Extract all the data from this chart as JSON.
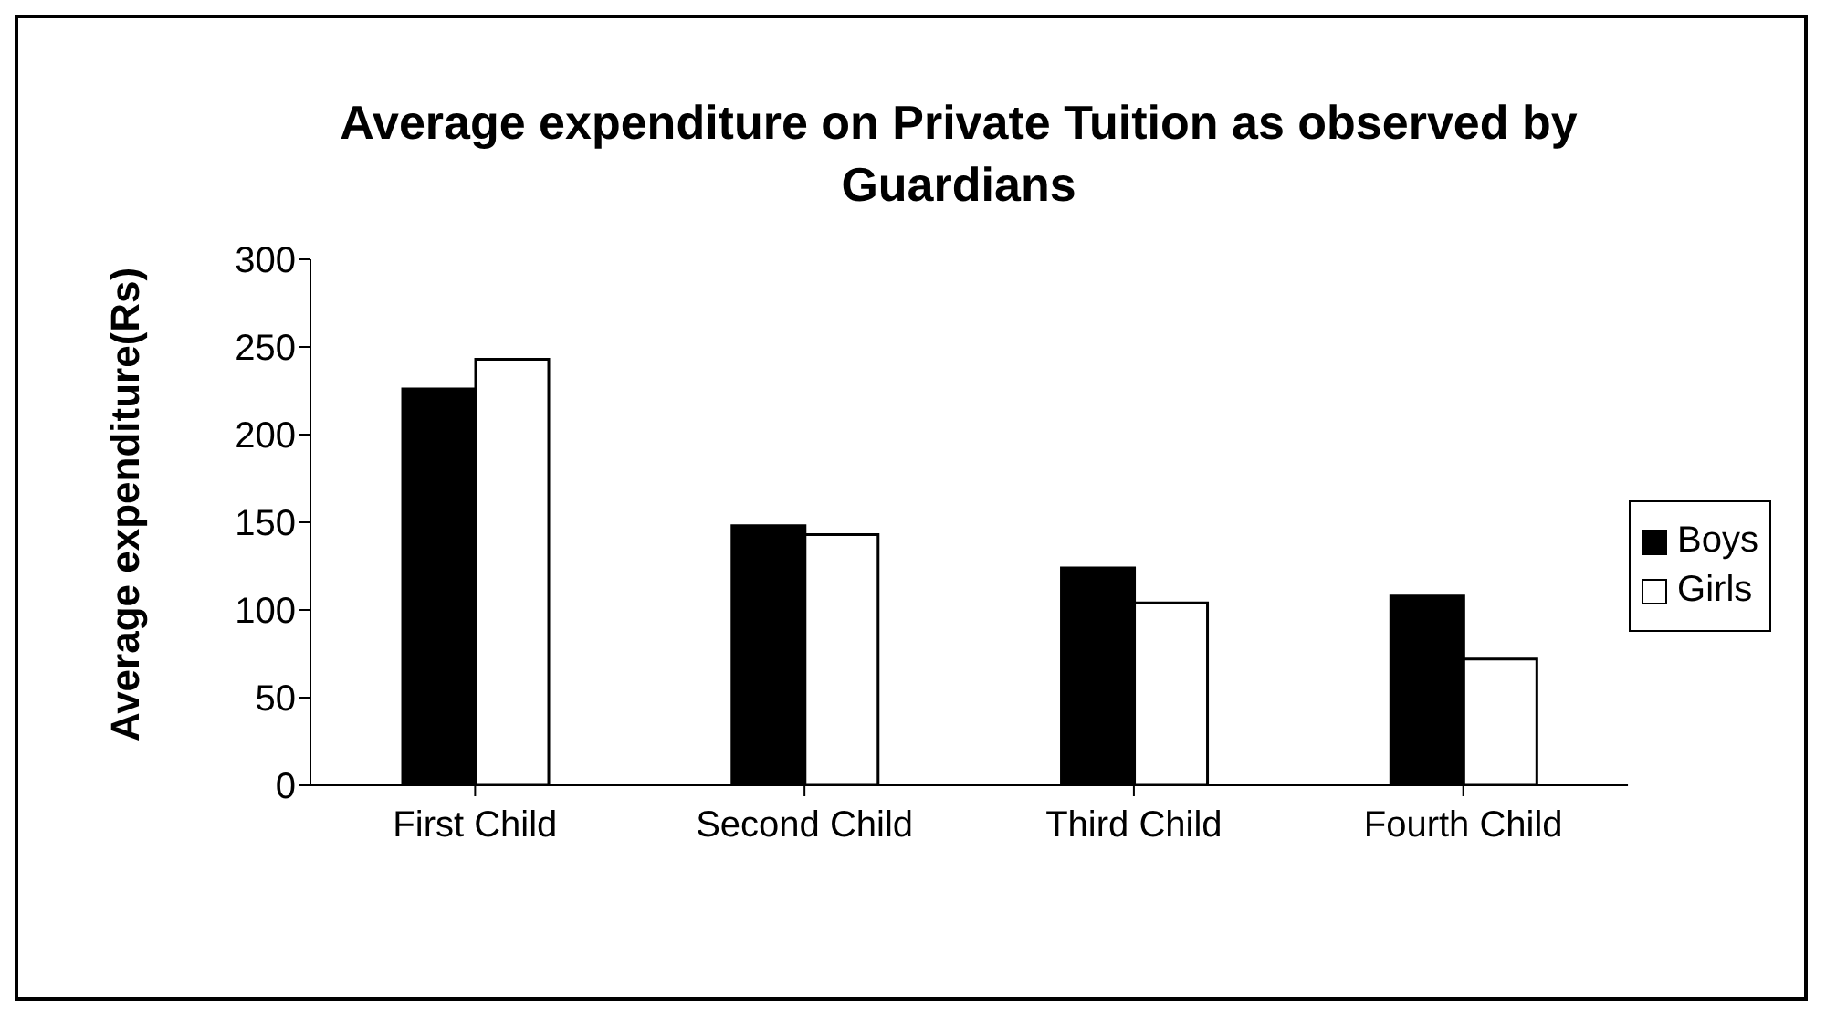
{
  "chart_data": {
    "type": "bar",
    "title": "Average expenditure on Private Tuition as observed by Guardians",
    "ylabel": "Average expenditure(Rs)",
    "categories": [
      "First Child",
      "Second Child",
      "Third Child",
      "Fourth Child"
    ],
    "series": [
      {
        "name": "Boys",
        "color": "#000000",
        "values": [
          226,
          148,
          124,
          108
        ]
      },
      {
        "name": "Girls",
        "color": "#ffffff",
        "values": [
          243,
          143,
          104,
          72
        ]
      }
    ],
    "ylim": [
      0,
      300
    ],
    "yticks": [
      0,
      50,
      100,
      150,
      200,
      250,
      300
    ],
    "grid": false,
    "legend": "right"
  }
}
